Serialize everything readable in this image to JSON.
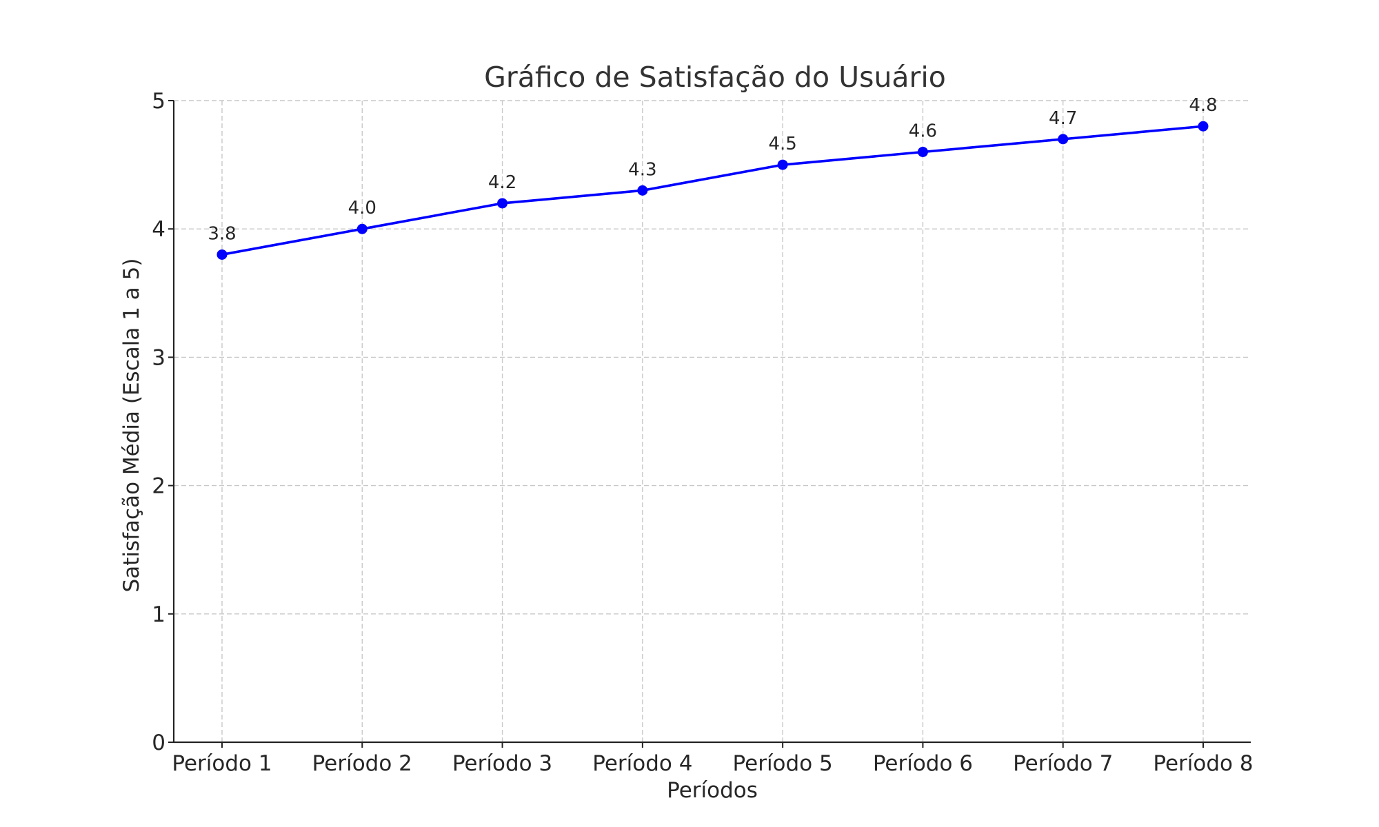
{
  "chart_data": {
    "type": "line",
    "title": "Gráfico de Satisfação do Usuário",
    "xlabel": "Períodos",
    "ylabel": "Satisfação Média (Escala 1 a 5)",
    "categories": [
      "Período 1",
      "Período 2",
      "Período 3",
      "Período 4",
      "Período 5",
      "Período 6",
      "Período 7",
      "Período 8"
    ],
    "series": [
      {
        "values": [
          3.8,
          4.0,
          4.2,
          4.3,
          4.5,
          4.6,
          4.7,
          4.8
        ],
        "data_labels": [
          "3.8",
          "4.0",
          "4.2",
          "4.3",
          "4.5",
          "4.6",
          "4.7",
          "4.8"
        ],
        "color": "#0000ff",
        "marker": "circle"
      }
    ],
    "ylim": [
      0,
      5
    ],
    "yticks": [
      "0",
      "1",
      "2",
      "3",
      "4",
      "5"
    ],
    "grid": true,
    "legend": "none"
  }
}
